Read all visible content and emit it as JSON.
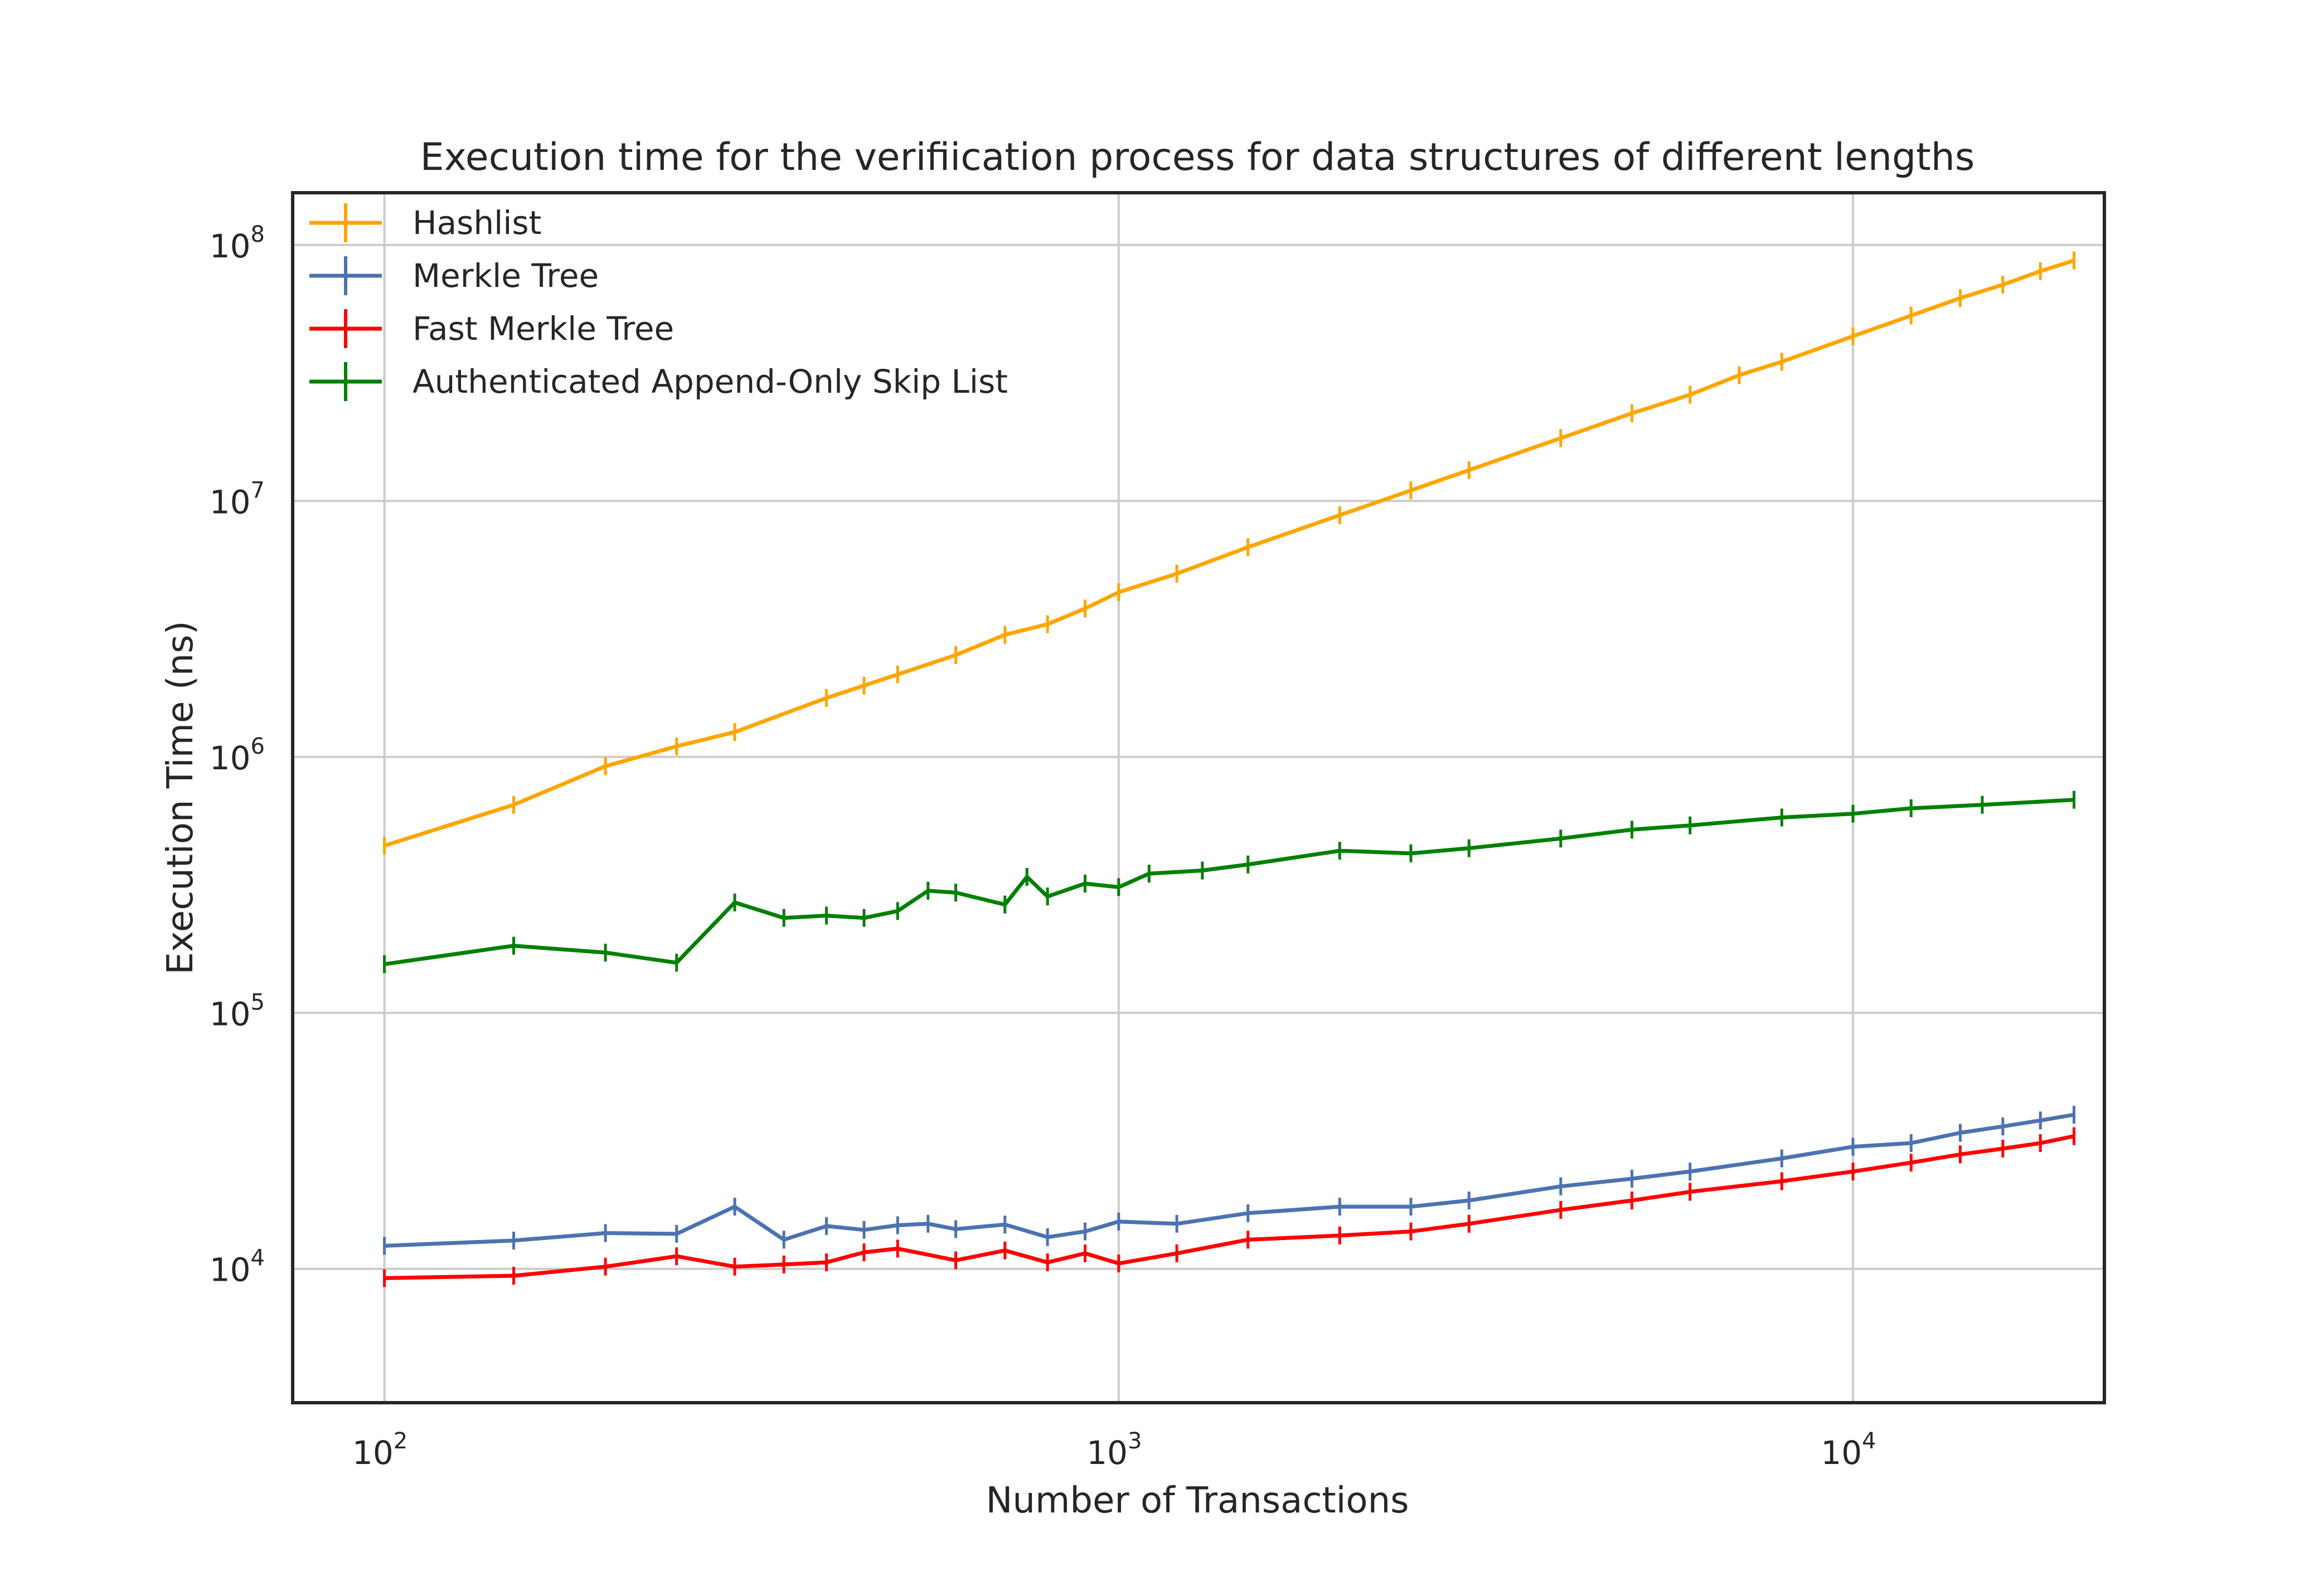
{
  "chart_data": {
    "type": "line",
    "title": "Execution time for the verifiication process for data structures of different lengths",
    "xlabel": "Number of Transactions",
    "ylabel": "Execution Time (ns)",
    "xscale": "log",
    "yscale": "log",
    "xlim": [
      75,
      22000
    ],
    "ylim": [
      3000,
      160000000
    ],
    "grid": true,
    "legend_position": "top-left",
    "x_ticks": [
      {
        "base": "10",
        "exp": "2",
        "value": 100
      },
      {
        "base": "10",
        "exp": "3",
        "value": 1000
      },
      {
        "base": "10",
        "exp": "4",
        "value": 10000
      }
    ],
    "y_ticks": [
      {
        "base": "10",
        "exp": "4",
        "value": 10000
      },
      {
        "base": "10",
        "exp": "5",
        "value": 100000
      },
      {
        "base": "10",
        "exp": "6",
        "value": 1000000
      },
      {
        "base": "10",
        "exp": "7",
        "value": 10000000
      },
      {
        "base": "10",
        "exp": "8",
        "value": 100000000
      }
    ],
    "series": [
      {
        "name": "Hashlist",
        "color": "#ffa500",
        "points": [
          [
            100,
            450000
          ],
          [
            150,
            650000
          ],
          [
            200,
            920000
          ],
          [
            250,
            1100000
          ],
          [
            300,
            1250000
          ],
          [
            400,
            1700000
          ],
          [
            450,
            1900000
          ],
          [
            500,
            2100000
          ],
          [
            600,
            2500000
          ],
          [
            700,
            3000000
          ],
          [
            800,
            3300000
          ],
          [
            900,
            3800000
          ],
          [
            1000,
            4400000
          ],
          [
            1200,
            5200000
          ],
          [
            1500,
            6600000
          ],
          [
            2000,
            8800000
          ],
          [
            2500,
            11000000
          ],
          [
            3000,
            13200000
          ],
          [
            4000,
            17600000
          ],
          [
            5000,
            22000000
          ],
          [
            6000,
            26000000
          ],
          [
            7000,
            31000000
          ],
          [
            8000,
            35000000
          ],
          [
            10000,
            44000000
          ],
          [
            12000,
            53000000
          ],
          [
            14000,
            62000000
          ],
          [
            16000,
            70000000
          ],
          [
            18000,
            79000000
          ],
          [
            20000,
            87000000
          ]
        ]
      },
      {
        "name": "Merkle Tree",
        "color": "#4c72b0",
        "points": [
          [
            100,
            12300
          ],
          [
            150,
            12900
          ],
          [
            200,
            13800
          ],
          [
            250,
            13700
          ],
          [
            300,
            17500
          ],
          [
            350,
            13000
          ],
          [
            400,
            14700
          ],
          [
            450,
            14200
          ],
          [
            500,
            14800
          ],
          [
            550,
            15000
          ],
          [
            600,
            14300
          ],
          [
            700,
            14900
          ],
          [
            800,
            13300
          ],
          [
            900,
            14000
          ],
          [
            1000,
            15300
          ],
          [
            1200,
            15000
          ],
          [
            1500,
            16500
          ],
          [
            2000,
            17500
          ],
          [
            2500,
            17500
          ],
          [
            3000,
            18500
          ],
          [
            4000,
            21000
          ],
          [
            5000,
            22500
          ],
          [
            6000,
            24000
          ],
          [
            8000,
            27000
          ],
          [
            10000,
            30000
          ],
          [
            12000,
            31000
          ],
          [
            14000,
            34000
          ],
          [
            16000,
            36000
          ],
          [
            18000,
            38000
          ],
          [
            20000,
            40000
          ]
        ]
      },
      {
        "name": "Fast Merkle Tree",
        "color": "#ff0000",
        "points": [
          [
            100,
            9200
          ],
          [
            150,
            9400
          ],
          [
            200,
            10200
          ],
          [
            250,
            11200
          ],
          [
            300,
            10200
          ],
          [
            350,
            10400
          ],
          [
            400,
            10600
          ],
          [
            450,
            11600
          ],
          [
            500,
            12000
          ],
          [
            600,
            10800
          ],
          [
            700,
            11800
          ],
          [
            800,
            10600
          ],
          [
            900,
            11500
          ],
          [
            1000,
            10500
          ],
          [
            1200,
            11500
          ],
          [
            1500,
            13000
          ],
          [
            2000,
            13500
          ],
          [
            2500,
            14000
          ],
          [
            3000,
            15000
          ],
          [
            4000,
            17000
          ],
          [
            5000,
            18500
          ],
          [
            6000,
            20000
          ],
          [
            8000,
            22000
          ],
          [
            10000,
            24000
          ],
          [
            12000,
            26000
          ],
          [
            14000,
            28000
          ],
          [
            16000,
            29500
          ],
          [
            18000,
            31000
          ],
          [
            20000,
            33000
          ]
        ]
      },
      {
        "name": "Authenticated Append-Only Skip List",
        "color": "#008000",
        "points": [
          [
            100,
            155000
          ],
          [
            150,
            183000
          ],
          [
            200,
            172000
          ],
          [
            250,
            157000
          ],
          [
            300,
            270000
          ],
          [
            350,
            235000
          ],
          [
            400,
            240000
          ],
          [
            450,
            235000
          ],
          [
            500,
            250000
          ],
          [
            550,
            300000
          ],
          [
            600,
            295000
          ],
          [
            700,
            265000
          ],
          [
            750,
            340000
          ],
          [
            800,
            285000
          ],
          [
            900,
            320000
          ],
          [
            1000,
            310000
          ],
          [
            1100,
            350000
          ],
          [
            1300,
            360000
          ],
          [
            1500,
            380000
          ],
          [
            2000,
            430000
          ],
          [
            2500,
            420000
          ],
          [
            3000,
            440000
          ],
          [
            4000,
            480000
          ],
          [
            5000,
            520000
          ],
          [
            6000,
            540000
          ],
          [
            8000,
            580000
          ],
          [
            10000,
            600000
          ],
          [
            12000,
            630000
          ],
          [
            15000,
            650000
          ],
          [
            20000,
            680000
          ]
        ]
      }
    ]
  }
}
